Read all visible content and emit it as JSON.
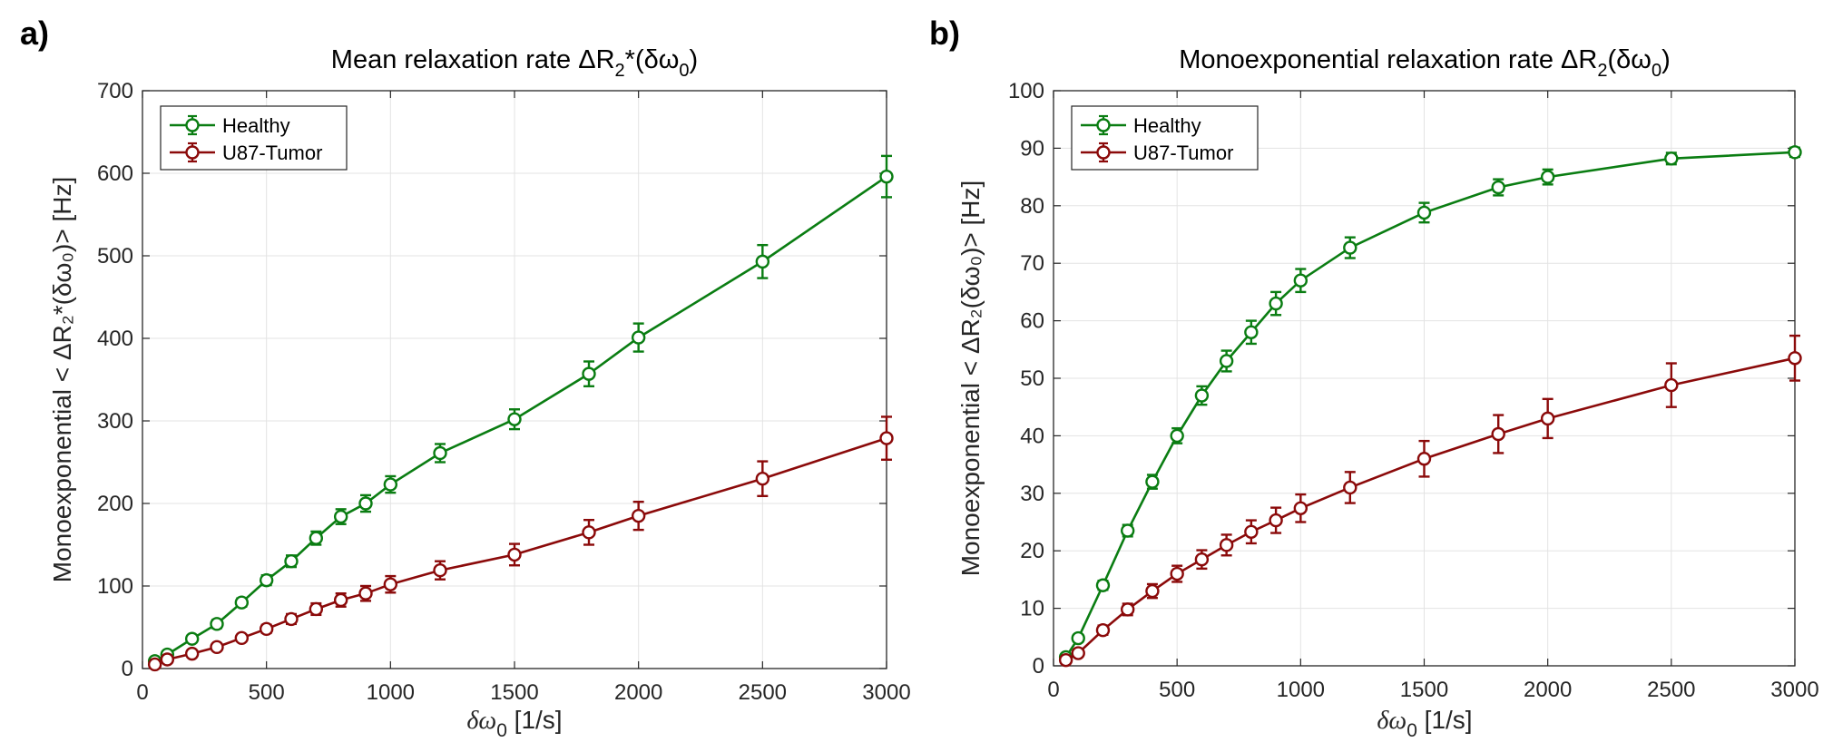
{
  "colors": {
    "healthy": "#0a7d12",
    "tumor": "#8b0a0a",
    "grid": "#e3e3e3",
    "axis": "#262626"
  },
  "chart_data": [
    {
      "panel": "a)",
      "type": "line",
      "title_main": "Mean relaxation rate ΔR",
      "title_sub": "2",
      "title_tail": "*(δω",
      "title_sub2": "0",
      "title_end": ")",
      "xlabel_main": "δω",
      "xlabel_sub": "0",
      "xlabel_tail": " [1/s]",
      "ylabel": "Monoexponential < ΔR₂*(δω₀)> [Hz]",
      "xlim": [
        0,
        3000
      ],
      "ylim": [
        0,
        700
      ],
      "xticks": [
        0,
        500,
        1000,
        1500,
        2000,
        2500,
        3000
      ],
      "yticks": [
        0,
        100,
        200,
        300,
        400,
        500,
        600,
        700
      ],
      "grid": true,
      "legend": "top-left",
      "x": [
        50,
        100,
        200,
        300,
        400,
        500,
        600,
        700,
        800,
        900,
        1000,
        1200,
        1500,
        1800,
        2000,
        2500,
        3000
      ],
      "series": [
        {
          "name": "Healthy",
          "color": "#0a7d12",
          "values": [
            9,
            17,
            36,
            54,
            80,
            107,
            130,
            158,
            184,
            200,
            223,
            261,
            302,
            357,
            401,
            493,
            596
          ],
          "errors": [
            3,
            4,
            4,
            5,
            5,
            6,
            7,
            8,
            9,
            10,
            10,
            11,
            12,
            15,
            17,
            20,
            25
          ]
        },
        {
          "name": "U87-Tumor",
          "color": "#8b0a0a",
          "values": [
            5,
            11,
            18,
            26,
            37,
            48,
            60,
            72,
            83,
            91,
            102,
            119,
            138,
            165,
            185,
            230,
            279
          ],
          "errors": [
            2,
            3,
            3,
            4,
            4,
            5,
            6,
            7,
            8,
            9,
            10,
            11,
            13,
            15,
            17,
            21,
            26
          ]
        }
      ]
    },
    {
      "panel": "b)",
      "type": "line",
      "title_main": "Monoexponential relaxation rate  ΔR",
      "title_sub": "2",
      "title_tail": "(δω",
      "title_sub2": "0",
      "title_end": ")",
      "xlabel_main": "δω",
      "xlabel_sub": "0",
      "xlabel_tail": " [1/s]",
      "ylabel": "Monoexponential < ΔR₂(δω₀)> [Hz]",
      "xlim": [
        0,
        3000
      ],
      "ylim": [
        0,
        100
      ],
      "xticks": [
        0,
        500,
        1000,
        1500,
        2000,
        2500,
        3000
      ],
      "yticks": [
        0,
        10,
        20,
        30,
        40,
        50,
        60,
        70,
        80,
        90,
        100
      ],
      "grid": true,
      "legend": "top-left",
      "x": [
        50,
        100,
        200,
        300,
        400,
        500,
        600,
        700,
        800,
        900,
        1000,
        1200,
        1500,
        1800,
        2000,
        2500,
        3000
      ],
      "series": [
        {
          "name": "Healthy",
          "color": "#0a7d12",
          "values": [
            1.5,
            4.8,
            14,
            23.5,
            32,
            40,
            47,
            53,
            58,
            63,
            67,
            72.7,
            78.8,
            83.2,
            85,
            88.2,
            89.3
          ],
          "errors": [
            0.5,
            0.6,
            0.8,
            1.0,
            1.2,
            1.3,
            1.6,
            1.8,
            2.0,
            2.0,
            2.0,
            1.8,
            1.7,
            1.4,
            1.3,
            1.0,
            0.8
          ]
        },
        {
          "name": "U87-Tumor",
          "color": "#8b0a0a",
          "values": [
            1,
            2.2,
            6.2,
            9.8,
            13,
            16,
            18.5,
            21,
            23.3,
            25.3,
            27.4,
            31,
            36,
            40.3,
            43,
            48.8,
            53.5
          ],
          "errors": [
            0.4,
            0.5,
            0.8,
            1.0,
            1.2,
            1.4,
            1.6,
            1.8,
            2.0,
            2.2,
            2.4,
            2.7,
            3.1,
            3.3,
            3.4,
            3.8,
            3.9
          ]
        }
      ]
    }
  ]
}
